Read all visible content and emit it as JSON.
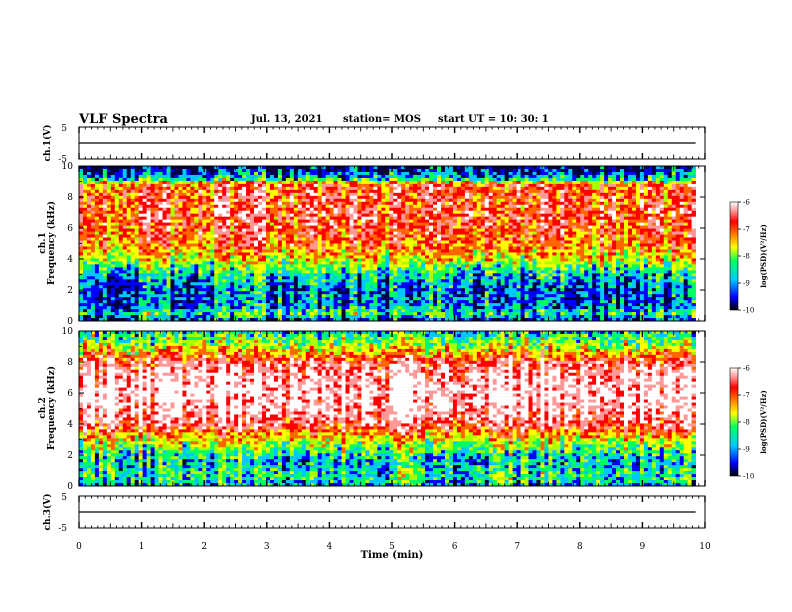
{
  "header": {
    "title": "VLF Spectra",
    "date": "Jul. 13, 2021",
    "station": "station= MOS",
    "start": "start UT = 10: 30: 1"
  },
  "chart_data": [
    {
      "type": "line",
      "panel": "ch1-voltage",
      "ylabel": "ch.1(V)",
      "ylim": [
        -5,
        5
      ],
      "yticks": [
        "5",
        "-5"
      ],
      "xlim": [
        0,
        10
      ],
      "x": [
        0,
        2,
        4,
        6,
        8,
        9.85
      ],
      "y": [
        0,
        0,
        0,
        0,
        0,
        0
      ]
    },
    {
      "type": "heatmap",
      "panel": "ch1-spectrogram",
      "ylabel": "Frequency (kHz)",
      "channel_label": "ch.1",
      "xlim": [
        0,
        10
      ],
      "ylim": [
        0,
        10
      ],
      "yticks": [
        "0",
        "2",
        "4",
        "6",
        "8",
        "10"
      ],
      "data_xmax": 9.85,
      "band_profile": {
        "freq_khz": [
          0,
          0.5,
          1,
          1.5,
          2,
          2.5,
          3,
          3.5,
          4,
          5,
          6,
          7,
          8,
          8.8,
          9.2,
          10
        ],
        "log_psd": [
          -9.5,
          -8.6,
          -9.3,
          -9.2,
          -9.3,
          -9.1,
          -8.9,
          -8.4,
          -7.9,
          -7.3,
          -7.1,
          -7.0,
          -7.1,
          -7.2,
          -9.0,
          -9.8
        ]
      },
      "colorbar": {
        "label": "log(PSD)(V²/Hz)",
        "range": [
          -10,
          -6
        ],
        "ticks": [
          "-6",
          "-7",
          "-8",
          "-9",
          "-10"
        ]
      }
    },
    {
      "type": "heatmap",
      "panel": "ch2-spectrogram",
      "ylabel": "Frequency (kHz)",
      "channel_label": "ch.2",
      "xlim": [
        0,
        10
      ],
      "ylim": [
        0,
        10
      ],
      "yticks": [
        "0",
        "2",
        "4",
        "6",
        "8",
        "10"
      ],
      "data_xmax": 9.85,
      "band_profile": {
        "freq_khz": [
          0,
          0.5,
          1,
          1.5,
          2,
          2.5,
          3,
          3.5,
          4,
          5,
          6,
          7,
          8,
          8.5,
          9,
          9.5,
          10
        ],
        "log_psd": [
          -9.0,
          -8.6,
          -8.7,
          -8.9,
          -8.7,
          -8.3,
          -7.8,
          -7.2,
          -6.7,
          -6.3,
          -6.2,
          -6.3,
          -6.7,
          -7.4,
          -8.0,
          -8.4,
          -8.8
        ]
      },
      "colorbar": {
        "label": "log(PSD)(V²/Hz)",
        "range": [
          -10,
          -6
        ],
        "ticks": [
          "-6",
          "-7",
          "-8",
          "-9",
          "-10"
        ]
      }
    },
    {
      "type": "line",
      "panel": "ch3-voltage",
      "ylabel": "ch.3(V)",
      "ylim": [
        -5,
        5
      ],
      "yticks": [
        "5",
        "-5"
      ],
      "xlim": [
        0,
        10
      ],
      "x": [
        0,
        9.85
      ],
      "y": [
        0,
        0
      ],
      "xlabel": "Time (min)",
      "xticks": [
        "0",
        "1",
        "2",
        "3",
        "4",
        "5",
        "6",
        "7",
        "8",
        "9",
        "10"
      ]
    }
  ],
  "colormap": [
    "#000044",
    "#0000ff",
    "#00c8ff",
    "#00ff66",
    "#aaff00",
    "#ffff00",
    "#ff6600",
    "#ff0000",
    "#ff9999",
    "#ffffff"
  ]
}
